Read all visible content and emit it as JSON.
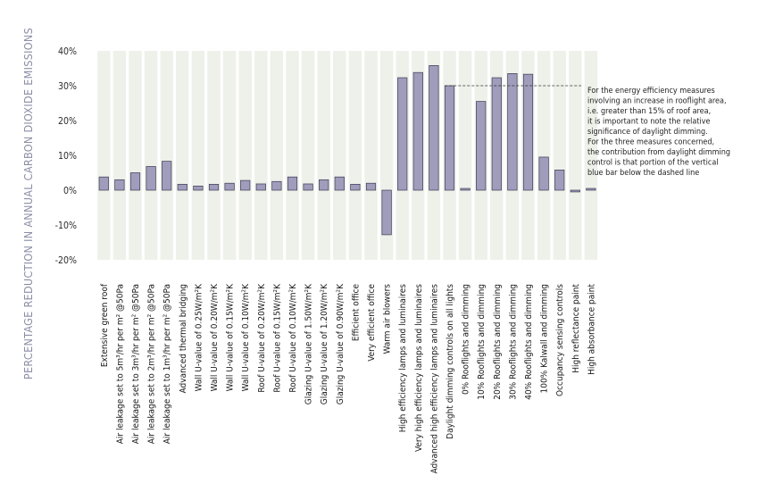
{
  "chart_data": {
    "type": "bar",
    "ylabel": "PERCENTAGE REDUCTION IN ANNUAL CARBON DIOXIDE EMISSIONS",
    "ylim": [
      -20,
      40
    ],
    "yticks": [
      -20,
      -10,
      0,
      10,
      20,
      30,
      40
    ],
    "ytick_labels": [
      "-20%",
      "-10%",
      "0%",
      "10%",
      "20%",
      "30%",
      "40%"
    ],
    "grid": false,
    "bar_color": "#a09cbc",
    "bar_outline": "#3d3a52",
    "background_column_color": "#eef1ea",
    "categories": [
      "Extensive green roof",
      "Air leakage set to 5m³/hr per m² @50Pa",
      "Air leakage set to 3m³/hr per m² @50Pa",
      "Air leakage set to 2m³/hr per m² @50Pa",
      "Air leakage set to 1m³/hr per m² @50Pa",
      "Advanced thermal bridging",
      "Wall U-value of 0.25W/m²K",
      "Wall U-value of 0.20W/m²K",
      "Wall U-value of 0.15W/m²K",
      "Wall U-value of 0.10W/m²K",
      "Roof U-value of 0.20W/m²K",
      "Roof U-value of 0.15W/m²K",
      "Roof U-value of 0.10W/m²K",
      "Glazing U-value of 1.50W/m²K",
      "Glazing U-value of 1.20W/m²K",
      "Glazing U-value of 0.90W/m²K",
      "Efficient office",
      "Very efficient office",
      "Warm air blowers",
      "High efficiency lamps and luminaires",
      "Very high efficiency lamps and luminaires",
      "Advanced high efficiency lamps and luminaires",
      "Daylight dimming controls on all lights",
      "0% Rooflights and dimming",
      "10% Rooflights and dimming",
      "20% Rooflights and dimming",
      "30% Rooflights and dimming",
      "40% Rooflights and dimming",
      "100% Kalwall and dimming",
      "Occupancy sensing controls",
      "High reflectance paint",
      "High absorbance paint"
    ],
    "values": [
      3.8,
      3.0,
      5.0,
      6.8,
      8.3,
      1.7,
      1.2,
      1.7,
      2.0,
      2.8,
      1.8,
      2.5,
      3.8,
      1.8,
      3.0,
      3.8,
      1.7,
      2.0,
      -12.8,
      32.3,
      33.8,
      35.8,
      30.0,
      0.5,
      25.5,
      32.3,
      33.5,
      33.3,
      9.5,
      5.8,
      -0.5,
      0.5
    ],
    "reference_line": {
      "value": 30,
      "style": "dashed",
      "from_category": 22
    },
    "annotation": [
      "For the energy efficiency measures",
      "involving an increase in rooflight area,",
      "i.e. greater than 15% of roof area,",
      "it is important to note the relative",
      "significance of daylight dimming.",
      "For the three measures concerned,",
      "the contribution from daylight dimming",
      "control is that portion of the vertical",
      "blue bar below the dashed line"
    ]
  }
}
